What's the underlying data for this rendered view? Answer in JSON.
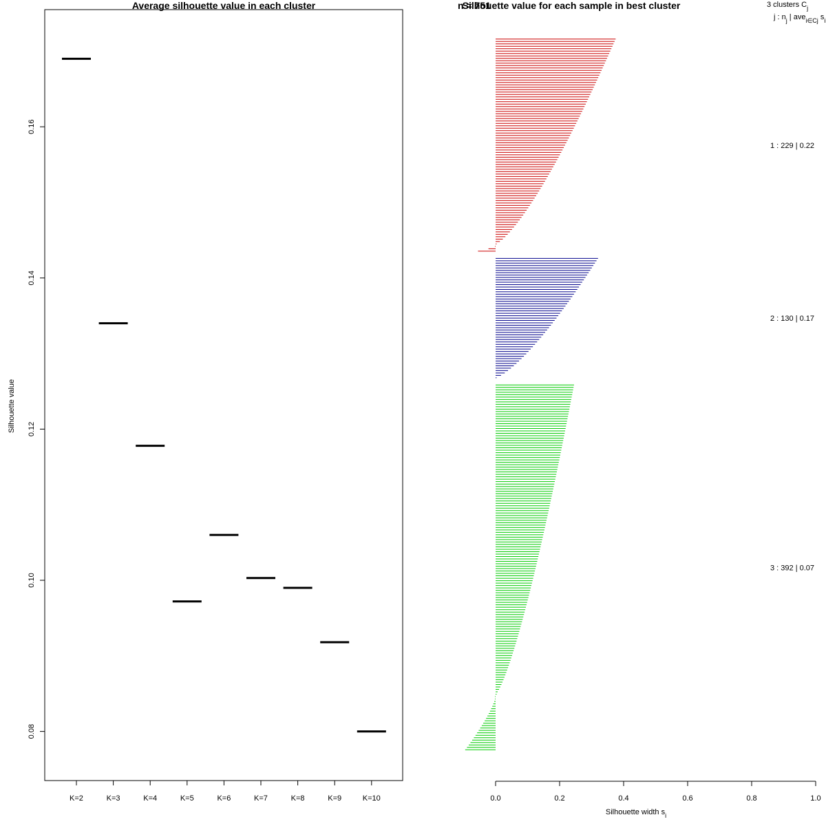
{
  "chart_data": [
    {
      "type": "scatter",
      "title": "Average silhouette value in each cluster",
      "xlabel": "",
      "ylabel": "Silhouette value",
      "ylim": [
        0.0735,
        0.1755
      ],
      "yticks": [
        0.08,
        0.1,
        0.12,
        0.14,
        0.16
      ],
      "ytick_labels": [
        "0.08",
        "0.10",
        "0.12",
        "0.14",
        "0.16"
      ],
      "categories": [
        "K=2",
        "K=3",
        "K=4",
        "K=5",
        "K=6",
        "K=7",
        "K=8",
        "K=9",
        "K=10"
      ],
      "values": [
        0.169,
        0.134,
        0.1178,
        0.0972,
        0.106,
        0.1003,
        0.099,
        0.0918,
        0.08
      ],
      "colors": {
        "marks": "#000000",
        "axis": "#000000"
      }
    },
    {
      "type": "bar",
      "title": "Silhouette value for each sample in best cluster",
      "title_prefix_overlap": "n = 751",
      "xlabel": "Silhouette width s",
      "xlabel_sub": "i",
      "xlim": [
        0,
        1
      ],
      "xticks": [
        0.0,
        0.2,
        0.4,
        0.6,
        0.8,
        1.0
      ],
      "xtick_labels": [
        "0.0",
        "0.2",
        "0.4",
        "0.6",
        "0.8",
        "1.0"
      ],
      "legend": {
        "header": "3  clusters  C",
        "header_sub": "j",
        "subheader": "j :  n",
        "subheader_sub": "j",
        "subheader_rest": " | ave",
        "subheader_sub2": "i∈Cj",
        "subheader_tail": " s",
        "subheader_tail_sub": "i"
      },
      "clusters": [
        {
          "id": 1,
          "n": 229,
          "avg": 0.22,
          "label": "1 :   229  |  0.22",
          "color": "#cc0000",
          "max": 0.375,
          "min": -0.055,
          "neg_count": 9
        },
        {
          "id": 2,
          "n": 130,
          "avg": 0.17,
          "label": "2 :   130  |  0.17",
          "color": "#00008b",
          "max": 0.32,
          "min": 0.02,
          "neg_count": 0
        },
        {
          "id": 3,
          "n": 392,
          "avg": 0.07,
          "label": "3 :   392  |  0.07",
          "color": "#00cc00",
          "max": 0.245,
          "min": -0.095,
          "neg_count": 60
        }
      ]
    }
  ]
}
